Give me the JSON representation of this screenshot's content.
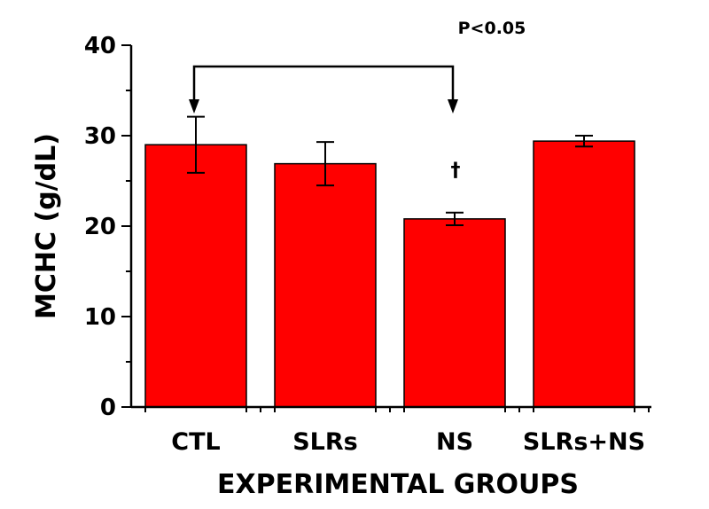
{
  "chart_data": {
    "type": "bar",
    "xlabel": "EXPERIMENTAL GROUPS",
    "ylabel": "MCHC (g/dL)",
    "ylim": [
      0,
      40
    ],
    "yticks": [
      0,
      10,
      20,
      30,
      40
    ],
    "categories": [
      "CTL",
      "SLRs",
      "NS",
      "SLRs+NS"
    ],
    "values": [
      29.0,
      26.9,
      20.8,
      29.4
    ],
    "errors": [
      3.1,
      2.4,
      0.7,
      0.6
    ],
    "bar_color": "#ff0000",
    "annotation": {
      "label": "P<0.05",
      "from_category": "CTL",
      "to_category": "NS",
      "marker": "†",
      "marker_category": "NS"
    },
    "grid": false,
    "legend": "none"
  }
}
